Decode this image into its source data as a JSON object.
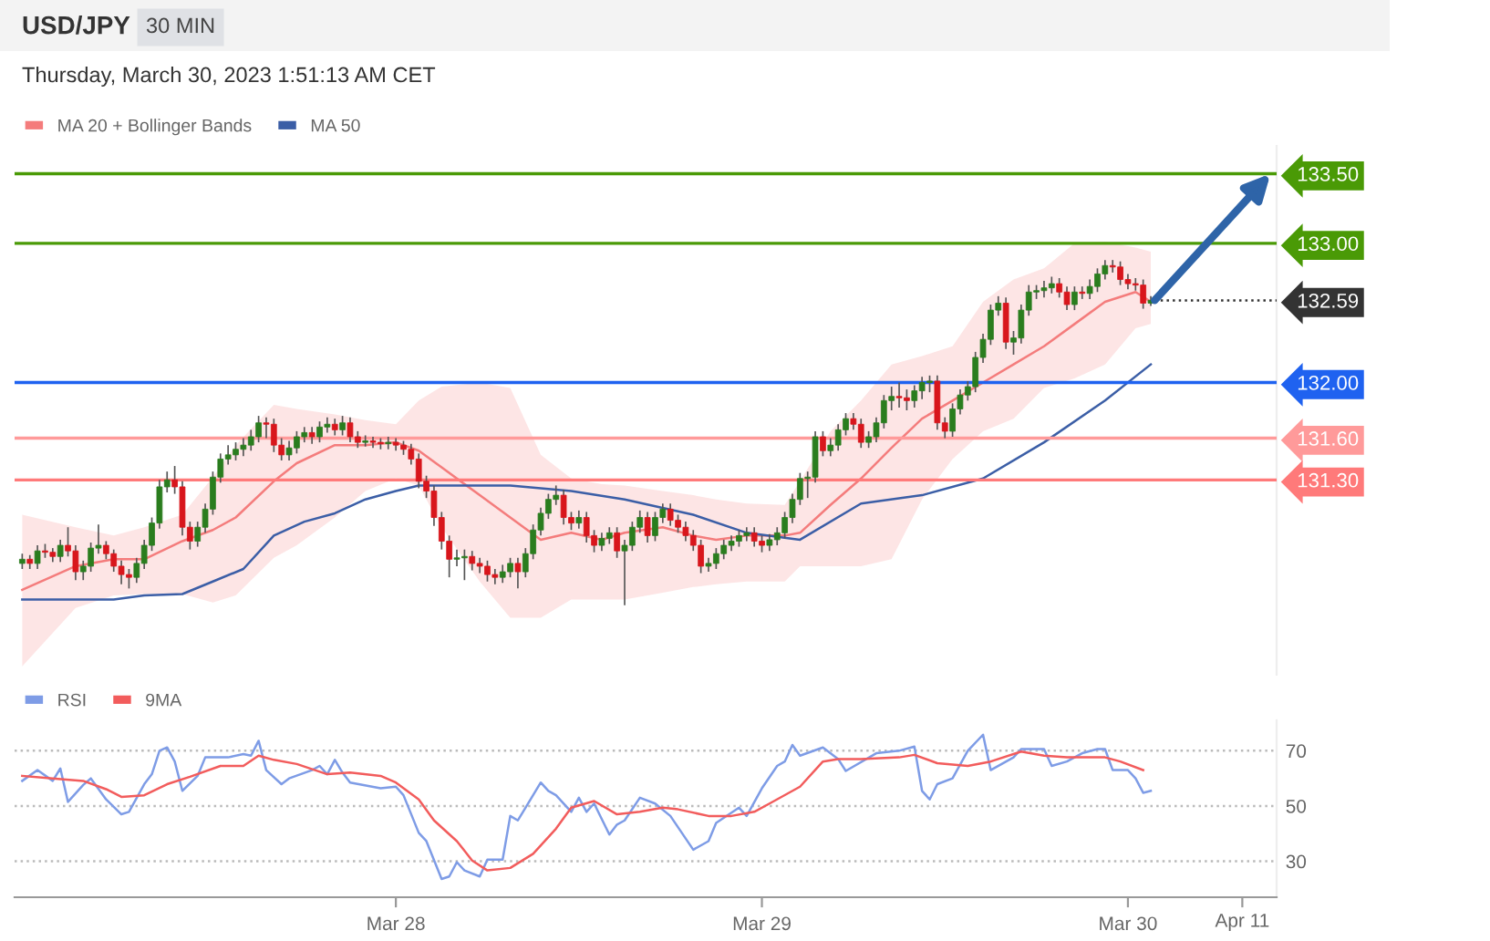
{
  "chart_data": [
    {
      "type": "candlestick",
      "title": "USD/JPY",
      "subtitle": "30 MIN",
      "annotations": [
        "Thursday, March 30, 2023 1:51:13 AM CET"
      ],
      "colors": [
        "#2a7d1e",
        "#d8161c",
        "#2a7d1e",
        "#d8161c",
        "#d8161c",
        "#2a7d1e",
        "#d8161c",
        "#d8161c",
        "#2a7d1e",
        "#2a7d1e",
        "#2a7d1e",
        "#d8161c",
        "#d8161c",
        "#d8161c",
        "#d8161c",
        "#2a7d1e",
        "#2a7d1e",
        "#2a7d1e",
        "#2a7d1e",
        "#2a7d1e",
        "#d8161c",
        "#d8161c",
        "#d8161c",
        "#2a7d1e",
        "#2a7d1e",
        "#2a7d1e",
        "#2a7d1e",
        "#2a7d1e",
        "#2a7d1e",
        "#2a7d1e",
        "#2a7d1e",
        "#2a7d1e",
        "#d8161c",
        "#d8161c",
        "#d8161c",
        "#2a7d1e",
        "#2a7d1e",
        "#2a7d1e",
        "#d8161c",
        "#2a7d1e",
        "#2a7d1e",
        "#d8161c",
        "#2a7d1e",
        "#d8161c",
        "#d8161c",
        "#2a7d1e",
        "#d8161c",
        "#d8161c",
        "#2a7d1e",
        "#d8161c",
        "#d8161c",
        "#d8161c",
        "#d8161c",
        "#d8161c",
        "#d8161c",
        "#d8161c",
        "#d8161c",
        "#2a7d1e",
        "#2a7d1e",
        "#d8161c",
        "#d8161c",
        "#d8161c",
        "#d8161c",
        "#2a7d1e",
        "#2a7d1e",
        "#d8161c",
        "#2a7d1e",
        "#2a7d1e",
        "#2a7d1e",
        "#2a7d1e",
        "#2a7d1e",
        "#d8161c",
        "#d8161c",
        "#2a7d1e",
        "#d8161c",
        "#d8161c",
        "#2a7d1e",
        "#2a7d1e",
        "#d8161c",
        "#2a7d1e",
        "#2a7d1e",
        "#2a7d1e",
        "#d8161c",
        "#2a7d1e",
        "#2a7d1e",
        "#d8161c",
        "#d8161c",
        "#d8161c",
        "#d8161c",
        "#d8161c",
        "#2a7d1e",
        "#2a7d1e",
        "#2a7d1e",
        "#2a7d1e",
        "#2a7d1e",
        "#2a7d1e",
        "#d8161c",
        "#d8161c",
        "#2a7d1e",
        "#2a7d1e",
        "#2a7d1e",
        "#2a7d1e",
        "#2a7d1e",
        "#2a7d1e",
        "#2a7d1e",
        "#d8161c",
        "#2a7d1e",
        "#2a7d1e",
        "#2a7d1e",
        "#d8161c",
        "#d8161c",
        "#2a7d1e",
        "#2a7d1e",
        "#2a7d1e",
        "#2a7d1e",
        "#d8161c",
        "#d8161c",
        "#2a7d1e",
        "#2a7d1e",
        "#2a7d1e",
        "#d8161c",
        "#d8161c",
        "#2a7d1e",
        "#2a7d1e",
        "#2a7d1e",
        "#2a7d1e",
        "#2a7d1e",
        "#2a7d1e",
        "#2a7d1e",
        "#d8161c",
        "#2a7d1e",
        "#2a7d1e",
        "#2a7d1e",
        "#2a7d1e",
        "#2a7d1e",
        "#2a7d1e",
        "#d8161c",
        "#d8161c",
        "#2a7d1e",
        "#d8161c",
        "#2a7d1e",
        "#2a7d1e",
        "#2a7d1e",
        "#d8161c",
        "#d8161c",
        "#d8161c",
        "#d8161c",
        "#d8161c",
        "#2a7d1e"
      ],
      "x": [
        "2023-03-26T23:30",
        "2023-03-27T00:00",
        "2023-03-27T00:30",
        "2023-03-27T01:00",
        "2023-03-27T01:30",
        "2023-03-27T02:00",
        "2023-03-27T02:30",
        "2023-03-27T03:00",
        "2023-03-27T03:30",
        "2023-03-27T04:00",
        "2023-03-27T04:30",
        "2023-03-27T05:00",
        "2023-03-27T05:30",
        "2023-03-27T06:00",
        "2023-03-27T06:30",
        "2023-03-27T07:00",
        "2023-03-27T07:30",
        "2023-03-27T08:00",
        "2023-03-27T08:30",
        "2023-03-27T09:00",
        "2023-03-27T09:30",
        "2023-03-27T10:00",
        "2023-03-27T10:30",
        "2023-03-27T11:00",
        "2023-03-27T11:30",
        "2023-03-27T12:00",
        "2023-03-27T12:30",
        "2023-03-27T13:00",
        "2023-03-27T13:30",
        "2023-03-27T14:00",
        "2023-03-27T14:30",
        "2023-03-27T15:00",
        "2023-03-27T15:30",
        "2023-03-27T16:00",
        "2023-03-27T16:30",
        "2023-03-27T17:00",
        "2023-03-27T17:30",
        "2023-03-27T18:00",
        "2023-03-27T18:30",
        "2023-03-27T19:00",
        "2023-03-27T19:30",
        "2023-03-27T20:00",
        "2023-03-27T20:30",
        "2023-03-27T21:00",
        "2023-03-27T21:30",
        "2023-03-27T22:00",
        "2023-03-27T22:30",
        "2023-03-27T23:00",
        "2023-03-27T23:30",
        "2023-03-28T00:00",
        "2023-03-28T00:30",
        "2023-03-28T01:00",
        "2023-03-28T01:30",
        "2023-03-28T02:00",
        "2023-03-28T02:30",
        "2023-03-28T03:00",
        "2023-03-28T03:30",
        "2023-03-28T04:00",
        "2023-03-28T04:30",
        "2023-03-28T05:00",
        "2023-03-28T05:30",
        "2023-03-28T06:00",
        "2023-03-28T06:30",
        "2023-03-28T07:00",
        "2023-03-28T07:30",
        "2023-03-28T08:00",
        "2023-03-28T08:30",
        "2023-03-28T09:00",
        "2023-03-28T09:30",
        "2023-03-28T10:00",
        "2023-03-28T10:30",
        "2023-03-28T11:00",
        "2023-03-28T11:30",
        "2023-03-28T12:00",
        "2023-03-28T12:30",
        "2023-03-28T13:00",
        "2023-03-28T13:30",
        "2023-03-28T14:00",
        "2023-03-28T14:30",
        "2023-03-28T15:00",
        "2023-03-28T15:30",
        "2023-03-28T16:00",
        "2023-03-28T16:30",
        "2023-03-28T17:00",
        "2023-03-28T17:30",
        "2023-03-28T18:00",
        "2023-03-28T18:30",
        "2023-03-28T19:00",
        "2023-03-28T19:30",
        "2023-03-28T20:00",
        "2023-03-28T20:30",
        "2023-03-28T21:00",
        "2023-03-28T21:30",
        "2023-03-28T22:00",
        "2023-03-28T22:30",
        "2023-03-28T23:00",
        "2023-03-28T23:30",
        "2023-03-29T00:00",
        "2023-03-29T00:30",
        "2023-03-29T01:00",
        "2023-03-29T01:30",
        "2023-03-29T02:00",
        "2023-03-29T02:30",
        "2023-03-29T03:00",
        "2023-03-29T03:30",
        "2023-03-29T04:00",
        "2023-03-29T04:30",
        "2023-03-29T05:00",
        "2023-03-29T05:30",
        "2023-03-29T06:00",
        "2023-03-29T06:30",
        "2023-03-29T07:00",
        "2023-03-29T07:30",
        "2023-03-29T08:00",
        "2023-03-29T08:30",
        "2023-03-29T09:00",
        "2023-03-29T09:30",
        "2023-03-29T10:00",
        "2023-03-29T10:30",
        "2023-03-29T11:00",
        "2023-03-29T11:30",
        "2023-03-29T12:00",
        "2023-03-29T12:30",
        "2023-03-29T13:00",
        "2023-03-29T13:30",
        "2023-03-29T14:00",
        "2023-03-29T14:30",
        "2023-03-29T15:00",
        "2023-03-29T15:30",
        "2023-03-29T16:00",
        "2023-03-29T16:30",
        "2023-03-29T17:00",
        "2023-03-29T17:30",
        "2023-03-29T18:00",
        "2023-03-29T18:30",
        "2023-03-29T19:00",
        "2023-03-29T19:30",
        "2023-03-29T20:00",
        "2023-03-29T20:30",
        "2023-03-29T21:00",
        "2023-03-29T21:30",
        "2023-03-29T22:00",
        "2023-03-29T22:30",
        "2023-03-29T23:00",
        "2023-03-29T23:30",
        "2023-03-30T00:00",
        "2023-03-30T00:30",
        "2023-03-30T01:00",
        "2023-03-30T01:30"
      ],
      "ohlc": [
        [
          130.7,
          130.77,
          130.66,
          130.73
        ],
        [
          130.73,
          130.76,
          130.66,
          130.7
        ],
        [
          130.7,
          130.83,
          130.66,
          130.79
        ],
        [
          130.79,
          130.84,
          130.74,
          130.78
        ],
        [
          130.78,
          130.81,
          130.71,
          130.75
        ],
        [
          130.75,
          130.87,
          130.71,
          130.83
        ],
        [
          130.83,
          130.96,
          130.75,
          130.79
        ],
        [
          130.79,
          130.83,
          130.58,
          130.64
        ],
        [
          130.64,
          130.72,
          130.58,
          130.68
        ],
        [
          130.68,
          130.85,
          130.64,
          130.81
        ],
        [
          130.81,
          130.98,
          130.77,
          130.83
        ],
        [
          130.83,
          130.86,
          130.73,
          130.77
        ],
        [
          130.77,
          130.8,
          130.64,
          130.68
        ],
        [
          130.68,
          130.72,
          130.55,
          130.62
        ],
        [
          130.62,
          130.66,
          130.52,
          130.6
        ],
        [
          130.6,
          130.74,
          130.56,
          130.7
        ],
        [
          130.7,
          130.87,
          130.66,
          130.83
        ],
        [
          130.83,
          131.03,
          130.79,
          130.99
        ],
        [
          130.99,
          131.3,
          130.95,
          131.25
        ],
        [
          131.25,
          131.36,
          131.21,
          131.3
        ],
        [
          131.3,
          131.4,
          131.2,
          131.25
        ],
        [
          131.25,
          131.29,
          130.9,
          130.96
        ],
        [
          130.96,
          131.0,
          130.8,
          130.86
        ],
        [
          130.86,
          131.0,
          130.82,
          130.96
        ],
        [
          130.96,
          131.13,
          130.92,
          131.09
        ],
        [
          131.09,
          131.36,
          131.05,
          131.32
        ],
        [
          131.32,
          131.49,
          131.28,
          131.45
        ],
        [
          131.45,
          131.55,
          131.41,
          131.48
        ],
        [
          131.48,
          131.57,
          131.44,
          131.52
        ],
        [
          131.52,
          131.6,
          131.47,
          131.55
        ],
        [
          131.55,
          131.66,
          131.51,
          131.61
        ],
        [
          131.61,
          131.76,
          131.57,
          131.71
        ],
        [
          131.71,
          131.75,
          131.6,
          131.7
        ],
        [
          131.7,
          131.74,
          131.5,
          131.55
        ],
        [
          131.55,
          131.6,
          131.44,
          131.48
        ],
        [
          131.48,
          131.58,
          131.44,
          131.53
        ],
        [
          131.53,
          131.65,
          131.49,
          131.61
        ],
        [
          131.61,
          131.68,
          131.57,
          131.64
        ],
        [
          131.64,
          131.68,
          131.56,
          131.61
        ],
        [
          131.61,
          131.72,
          131.57,
          131.68
        ],
        [
          131.68,
          131.75,
          131.64,
          131.7
        ],
        [
          131.7,
          131.74,
          131.62,
          131.66
        ],
        [
          131.66,
          131.76,
          131.62,
          131.71
        ],
        [
          131.71,
          131.75,
          131.57,
          131.61
        ],
        [
          131.61,
          131.65,
          131.53,
          131.57
        ],
        [
          131.57,
          131.62,
          131.54,
          131.58
        ],
        [
          131.58,
          131.61,
          131.53,
          131.57
        ],
        [
          131.57,
          131.6,
          131.52,
          131.56
        ],
        [
          131.56,
          131.61,
          131.52,
          131.57
        ],
        [
          131.57,
          131.6,
          131.51,
          131.55
        ],
        [
          131.55,
          131.58,
          131.48,
          131.52
        ],
        [
          131.52,
          131.56,
          131.41,
          131.45
        ],
        [
          131.45,
          131.49,
          131.24,
          131.29
        ],
        [
          131.29,
          131.33,
          131.17,
          131.22
        ],
        [
          131.22,
          131.26,
          130.97,
          131.03
        ],
        [
          131.03,
          131.07,
          130.8,
          130.86
        ],
        [
          130.86,
          130.9,
          130.6,
          130.73
        ],
        [
          130.73,
          130.8,
          130.68,
          130.74
        ],
        [
          130.74,
          130.8,
          130.58,
          130.75
        ],
        [
          130.75,
          130.79,
          130.65,
          130.7
        ],
        [
          130.7,
          130.74,
          130.63,
          130.68
        ],
        [
          130.68,
          130.72,
          130.57,
          130.62
        ],
        [
          130.62,
          130.66,
          130.55,
          130.6
        ],
        [
          130.6,
          130.69,
          130.56,
          130.64
        ],
        [
          130.64,
          130.74,
          130.6,
          130.7
        ],
        [
          130.7,
          130.74,
          130.52,
          130.64
        ],
        [
          130.64,
          130.81,
          130.6,
          130.77
        ],
        [
          130.77,
          130.98,
          130.73,
          130.94
        ],
        [
          130.94,
          131.1,
          130.9,
          131.06
        ],
        [
          131.06,
          131.2,
          131.02,
          131.16
        ],
        [
          131.16,
          131.26,
          131.12,
          131.19
        ],
        [
          131.19,
          131.23,
          130.98,
          131.03
        ],
        [
          131.03,
          131.07,
          130.94,
          130.99
        ],
        [
          130.99,
          131.08,
          130.95,
          131.03
        ],
        [
          131.03,
          131.07,
          130.85,
          130.9
        ],
        [
          130.9,
          130.94,
          130.78,
          130.83
        ],
        [
          130.83,
          130.92,
          130.79,
          130.88
        ],
        [
          130.88,
          130.96,
          130.84,
          130.92
        ],
        [
          130.92,
          130.96,
          130.74,
          130.79
        ],
        [
          130.79,
          130.87,
          130.4,
          130.83
        ],
        [
          130.83,
          131.0,
          130.79,
          130.96
        ],
        [
          130.96,
          131.08,
          130.92,
          131.03
        ],
        [
          131.03,
          131.07,
          130.85,
          130.9
        ],
        [
          130.9,
          131.07,
          130.86,
          131.03
        ],
        [
          131.03,
          131.13,
          130.99,
          131.09
        ],
        [
          131.09,
          131.13,
          130.97,
          131.01
        ],
        [
          131.01,
          131.05,
          130.92,
          130.96
        ],
        [
          130.96,
          131.0,
          130.86,
          130.9
        ],
        [
          130.9,
          130.94,
          130.79,
          130.83
        ],
        [
          130.83,
          130.87,
          130.63,
          130.68
        ],
        [
          130.68,
          130.74,
          130.64,
          130.7
        ],
        [
          130.7,
          130.81,
          130.66,
          130.77
        ],
        [
          130.77,
          130.87,
          130.73,
          130.83
        ],
        [
          130.83,
          130.9,
          130.79,
          130.86
        ],
        [
          130.86,
          130.94,
          130.82,
          130.9
        ],
        [
          130.9,
          130.96,
          130.86,
          130.92
        ],
        [
          130.92,
          130.96,
          130.82,
          130.86
        ],
        [
          130.86,
          130.9,
          130.78,
          130.83
        ],
        [
          130.83,
          130.91,
          130.79,
          130.87
        ],
        [
          130.87,
          130.96,
          130.83,
          130.92
        ],
        [
          130.92,
          131.07,
          130.88,
          131.03
        ],
        [
          131.03,
          131.2,
          130.99,
          131.16
        ],
        [
          131.16,
          131.35,
          131.12,
          131.31
        ],
        [
          131.31,
          131.36,
          131.17,
          131.32
        ],
        [
          131.32,
          131.65,
          131.28,
          131.61
        ],
        [
          131.61,
          131.65,
          131.47,
          131.51
        ],
        [
          131.51,
          131.6,
          131.47,
          131.55
        ],
        [
          131.55,
          131.7,
          131.51,
          131.66
        ],
        [
          131.66,
          131.78,
          131.62,
          131.74
        ],
        [
          131.74,
          131.78,
          131.66,
          131.7
        ],
        [
          131.7,
          131.74,
          131.53,
          131.57
        ],
        [
          131.57,
          131.65,
          131.53,
          131.61
        ],
        [
          131.61,
          131.75,
          131.57,
          131.71
        ],
        [
          131.71,
          131.91,
          131.67,
          131.87
        ],
        [
          131.87,
          131.97,
          131.8,
          131.9
        ],
        [
          131.9,
          132.0,
          131.82,
          131.89
        ],
        [
          131.89,
          131.95,
          131.8,
          131.87
        ],
        [
          131.87,
          131.98,
          131.82,
          131.94
        ],
        [
          131.94,
          132.04,
          131.88,
          132.0
        ],
        [
          132.0,
          132.05,
          131.93,
          132.01
        ],
        [
          132.01,
          132.05,
          131.66,
          131.71
        ],
        [
          131.71,
          131.75,
          131.6,
          131.65
        ],
        [
          131.65,
          131.85,
          131.61,
          131.81
        ],
        [
          131.81,
          131.95,
          131.77,
          131.91
        ],
        [
          131.91,
          132.01,
          131.87,
          131.97
        ],
        [
          131.97,
          132.22,
          131.93,
          132.18
        ],
        [
          132.18,
          132.35,
          132.14,
          132.31
        ],
        [
          132.31,
          132.56,
          132.27,
          132.52
        ],
        [
          132.52,
          132.62,
          132.48,
          132.57
        ],
        [
          132.57,
          132.61,
          132.24,
          132.29
        ],
        [
          132.29,
          132.37,
          132.2,
          132.32
        ],
        [
          132.32,
          132.56,
          132.28,
          132.52
        ],
        [
          132.52,
          132.7,
          132.48,
          132.65
        ],
        [
          132.65,
          132.7,
          132.6,
          132.66
        ],
        [
          132.66,
          132.73,
          132.61,
          132.68
        ],
        [
          132.68,
          132.76,
          132.64,
          132.71
        ],
        [
          132.71,
          132.75,
          132.61,
          132.65
        ],
        [
          132.65,
          132.69,
          132.52,
          132.56
        ],
        [
          132.56,
          132.69,
          132.52,
          132.65
        ],
        [
          132.65,
          132.69,
          132.6,
          132.64
        ],
        [
          132.64,
          132.74,
          132.6,
          132.69
        ],
        [
          132.69,
          132.82,
          132.65,
          132.78
        ],
        [
          132.78,
          132.88,
          132.74,
          132.84
        ],
        [
          132.84,
          132.88,
          132.79,
          132.83
        ],
        [
          132.83,
          132.87,
          132.7,
          132.74
        ],
        [
          132.74,
          132.78,
          132.67,
          132.71
        ],
        [
          132.71,
          132.75,
          132.66,
          132.7
        ],
        [
          132.7,
          132.74,
          132.53,
          132.57
        ],
        [
          132.57,
          132.62,
          132.55,
          132.59
        ]
      ],
      "series": [
        {
          "name": "MA 20 + Bollinger Bands",
          "type": "line",
          "color": "#f47c7c",
          "x": [
            "2023-03-26T23:30",
            "2023-03-27T03:00",
            "2023-03-27T05:30",
            "2023-03-27T07:30",
            "2023-03-27T10:00",
            "2023-03-27T12:00",
            "2023-03-27T13:30",
            "2023-03-27T16:00",
            "2023-03-27T17:30",
            "2023-03-27T20:00",
            "2023-03-27T22:00",
            "2023-03-28T00:00",
            "2023-03-28T01:30",
            "2023-03-28T03:00",
            "2023-03-28T05:30",
            "2023-03-28T07:30",
            "2023-03-28T09:30",
            "2023-03-28T11:30",
            "2023-03-28T13:30",
            "2023-03-28T15:00",
            "2023-03-28T17:30",
            "2023-03-28T19:30",
            "2023-03-28T21:00",
            "2023-03-28T23:00",
            "2023-03-29T01:30",
            "2023-03-29T02:30",
            "2023-03-29T04:30",
            "2023-03-29T06:30",
            "2023-03-29T08:30",
            "2023-03-29T10:30",
            "2023-03-29T12:30",
            "2023-03-29T14:30",
            "2023-03-29T16:30",
            "2023-03-29T18:30",
            "2023-03-29T20:30",
            "2023-03-29T22:30",
            "2023-03-30T00:30",
            "2023-03-30T01:30"
          ],
          "values": [
            130.51,
            130.68,
            130.73,
            130.73,
            130.86,
            130.94,
            131.03,
            131.29,
            131.42,
            131.55,
            131.55,
            131.57,
            131.51,
            131.39,
            131.19,
            131.03,
            130.87,
            130.92,
            130.87,
            130.92,
            130.96,
            130.9,
            130.87,
            130.9,
            130.9,
            130.92,
            131.12,
            131.31,
            131.53,
            131.74,
            131.87,
            132.0,
            132.13,
            132.26,
            132.42,
            132.58,
            132.65,
            132.58
          ],
          "upper": [
            131.05,
            130.96,
            130.9,
            130.96,
            131.05,
            131.32,
            131.55,
            131.84,
            131.81,
            131.77,
            131.73,
            131.7,
            131.87,
            131.97,
            132.0,
            131.96,
            131.48,
            131.31,
            131.27,
            131.26,
            131.22,
            131.19,
            131.16,
            131.13,
            131.12,
            131.29,
            131.65,
            131.87,
            132.13,
            132.19,
            132.26,
            132.58,
            132.74,
            132.82,
            133.0,
            133.01,
            132.97,
            132.94
          ],
          "lower": [
            129.96,
            130.38,
            130.47,
            130.48,
            130.48,
            130.42,
            130.47,
            130.74,
            130.83,
            131.03,
            131.22,
            131.31,
            131.26,
            130.96,
            130.57,
            130.31,
            130.31,
            130.44,
            130.44,
            130.44,
            130.49,
            130.53,
            130.55,
            130.57,
            130.57,
            130.68,
            130.68,
            130.68,
            130.73,
            131.16,
            131.45,
            131.65,
            131.74,
            131.96,
            132.03,
            132.13,
            132.39,
            132.42
          ]
        },
        {
          "name": "MA 50",
          "type": "line",
          "color": "#3b5ea6",
          "x": [
            "2023-03-26T23:30",
            "2023-03-27T05:30",
            "2023-03-27T07:30",
            "2023-03-27T10:00",
            "2023-03-27T12:00",
            "2023-03-27T14:00",
            "2023-03-27T16:00",
            "2023-03-27T18:00",
            "2023-03-27T20:00",
            "2023-03-27T22:00",
            "2023-03-28T00:00",
            "2023-03-28T01:30",
            "2023-03-28T05:30",
            "2023-03-28T07:30",
            "2023-03-28T11:30",
            "2023-03-28T15:00",
            "2023-03-28T19:30",
            "2023-03-28T23:00",
            "2023-03-29T02:30",
            "2023-03-29T06:30",
            "2023-03-29T10:30",
            "2023-03-29T14:30",
            "2023-03-29T18:30",
            "2023-03-29T22:30",
            "2023-03-30T01:30"
          ],
          "values": [
            130.44,
            130.44,
            130.47,
            130.48,
            130.57,
            130.66,
            130.9,
            131.0,
            131.06,
            131.16,
            131.22,
            131.26,
            131.26,
            131.26,
            131.22,
            131.16,
            131.05,
            130.92,
            130.87,
            131.13,
            131.19,
            131.31,
            131.57,
            131.87,
            132.13
          ]
        }
      ],
      "xlim": [
        "2023-03-26T23:00",
        "2023-03-30T09:45"
      ],
      "ylim": [
        129.9,
        133.7
      ],
      "tick_labels": "y",
      "legend": "top left",
      "yticks": [
        {
          "value": 131.3,
          "label": "131.30"
        },
        {
          "value": 131.6,
          "label": "131.60"
        },
        {
          "value": 132.0,
          "label": "132.00"
        },
        {
          "value": 132.59,
          "label": "132.59"
        },
        {
          "value": 133.0,
          "label": "133.00"
        },
        {
          "value": 133.5,
          "label": "133.50"
        }
      ],
      "ref_lines": [
        {
          "axis": "y",
          "value": 133.5,
          "color": "#4a9a06",
          "line_style": "solid"
        },
        {
          "axis": "y",
          "value": 133.0,
          "color": "#4a9a06",
          "line_style": "solid"
        },
        {
          "axis": "y",
          "value": 132.59,
          "color": "#333333",
          "line_style": "dotted"
        },
        {
          "axis": "y",
          "value": 132.0,
          "color": "#1f62f0",
          "line_style": "solid"
        },
        {
          "axis": "y",
          "value": 131.6,
          "color": "#ff9a9a",
          "line_style": "solid"
        },
        {
          "axis": "y",
          "value": 131.3,
          "color": "#ff7a7a",
          "line_style": "solid"
        }
      ]
    },
    {
      "type": "line",
      "legend": "top left",
      "grid": "y",
      "annotations": [
        "Apr 11"
      ],
      "series": [
        {
          "name": "RSI",
          "color": "#7e9ce6",
          "x": [
            "2023-03-26T23:30",
            "2023-03-27T00:30",
            "2023-03-27T01:30",
            "2023-03-27T02:00",
            "2023-03-27T02:30",
            "2023-03-27T03:30",
            "2023-03-27T04:00",
            "2023-03-27T05:00",
            "2023-03-27T06:00",
            "2023-03-27T06:30",
            "2023-03-27T07:30",
            "2023-03-27T08:00",
            "2023-03-27T08:30",
            "2023-03-27T09:00",
            "2023-03-27T09:30",
            "2023-03-27T10:00",
            "2023-03-27T11:00",
            "2023-03-27T11:30",
            "2023-03-27T13:00",
            "2023-03-27T14:00",
            "2023-03-27T14:30",
            "2023-03-27T15:00",
            "2023-03-27T15:30",
            "2023-03-27T16:30",
            "2023-03-27T17:00",
            "2023-03-27T18:30",
            "2023-03-27T19:00",
            "2023-03-27T19:30",
            "2023-03-27T20:00",
            "2023-03-27T20:30",
            "2023-03-27T21:00",
            "2023-03-27T23:00",
            "2023-03-28T00:00",
            "2023-03-28T00:30",
            "2023-03-28T01:30",
            "2023-03-28T02:00",
            "2023-03-28T03:00",
            "2023-03-28T03:30",
            "2023-03-28T04:00",
            "2023-03-28T04:30",
            "2023-03-28T05:30",
            "2023-03-28T06:00",
            "2023-03-28T07:00",
            "2023-03-28T07:30",
            "2023-03-28T08:00",
            "2023-03-28T08:30",
            "2023-03-28T09:30",
            "2023-03-28T10:00",
            "2023-03-28T10:30",
            "2023-03-28T11:30",
            "2023-03-28T12:00",
            "2023-03-28T12:30",
            "2023-03-28T13:00",
            "2023-03-28T14:00",
            "2023-03-28T14:30",
            "2023-03-28T15:00",
            "2023-03-28T16:00",
            "2023-03-28T17:00",
            "2023-03-28T18:00",
            "2023-03-28T19:30",
            "2023-03-28T20:30",
            "2023-03-28T21:00",
            "2023-03-28T22:30",
            "2023-03-28T23:00",
            "2023-03-29T00:00",
            "2023-03-29T01:00",
            "2023-03-29T01:30",
            "2023-03-29T02:00",
            "2023-03-29T02:30",
            "2023-03-29T04:00",
            "2023-03-29T05:00",
            "2023-03-29T05:30",
            "2023-03-29T07:30",
            "2023-03-29T09:00",
            "2023-03-29T10:00",
            "2023-03-29T10:30",
            "2023-03-29T11:00",
            "2023-03-29T11:30",
            "2023-03-29T12:30",
            "2023-03-29T13:30",
            "2023-03-29T14:30",
            "2023-03-29T15:00",
            "2023-03-29T16:30",
            "2023-03-29T17:00",
            "2023-03-29T18:30",
            "2023-03-29T19:00",
            "2023-03-29T20:00",
            "2023-03-29T21:00",
            "2023-03-29T22:00",
            "2023-03-29T22:30",
            "2023-03-29T23:00",
            "2023-03-30T00:00",
            "2023-03-30T00:30",
            "2023-03-30T01:00",
            "2023-03-30T01:30"
          ],
          "values": [
            59.1,
            63.0,
            59.1,
            63.6,
            51.5,
            57.6,
            60.0,
            52.4,
            47.0,
            47.9,
            57.9,
            61.5,
            70.0,
            71.2,
            66.1,
            55.5,
            60.9,
            67.6,
            67.6,
            68.8,
            68.2,
            73.6,
            63.0,
            57.9,
            60.0,
            63.0,
            64.5,
            61.5,
            66.7,
            62.1,
            58.5,
            56.4,
            57.0,
            53.9,
            40.3,
            37.3,
            23.6,
            24.5,
            29.7,
            26.7,
            24.5,
            30.6,
            30.6,
            46.4,
            44.8,
            49.4,
            58.5,
            55.5,
            53.9,
            47.9,
            53.0,
            47.9,
            50.9,
            39.7,
            43.3,
            44.8,
            53.0,
            50.9,
            46.4,
            34.2,
            37.3,
            43.9,
            49.4,
            46.4,
            56.4,
            64.5,
            66.1,
            72.1,
            68.2,
            71.2,
            67.0,
            62.7,
            69.1,
            70.0,
            71.5,
            55.5,
            52.4,
            57.9,
            60.0,
            70.0,
            75.8,
            63.0,
            67.6,
            70.6,
            70.6,
            64.5,
            66.1,
            69.1,
            70.6,
            70.6,
            63.0,
            63.0,
            60.0,
            54.8,
            55.5
          ]
        },
        {
          "name": "9MA",
          "color": "#f25c5c",
          "x": [
            "2023-03-26T23:30",
            "2023-03-27T01:30",
            "2023-03-27T03:30",
            "2023-03-27T05:00",
            "2023-03-27T06:00",
            "2023-03-27T07:30",
            "2023-03-27T09:00",
            "2023-03-27T10:30",
            "2023-03-27T12:30",
            "2023-03-27T14:00",
            "2023-03-27T15:00",
            "2023-03-27T16:00",
            "2023-03-27T17:30",
            "2023-03-27T19:30",
            "2023-03-27T21:00",
            "2023-03-27T23:00",
            "2023-03-28T00:00",
            "2023-03-28T01:30",
            "2023-03-28T02:30",
            "2023-03-28T04:00",
            "2023-03-28T05:00",
            "2023-03-28T06:00",
            "2023-03-28T07:30",
            "2023-03-28T09:00",
            "2023-03-28T10:30",
            "2023-03-28T11:30",
            "2023-03-28T13:00",
            "2023-03-28T14:30",
            "2023-03-28T16:00",
            "2023-03-28T17:30",
            "2023-03-28T18:30",
            "2023-03-28T20:30",
            "2023-03-28T22:00",
            "2023-03-28T23:30",
            "2023-03-29T00:30",
            "2023-03-29T02:30",
            "2023-03-29T04:00",
            "2023-03-29T05:00",
            "2023-03-29T06:30",
            "2023-03-29T09:00",
            "2023-03-29T10:00",
            "2023-03-29T11:30",
            "2023-03-29T13:30",
            "2023-03-29T15:00",
            "2023-03-29T17:00",
            "2023-03-29T18:30",
            "2023-03-29T20:00",
            "2023-03-29T21:30",
            "2023-03-29T22:30",
            "2023-03-29T23:30",
            "2023-03-30T01:00"
          ],
          "values": [
            60.9,
            60.0,
            59.1,
            56.1,
            53.3,
            53.9,
            57.9,
            60.6,
            64.5,
            64.5,
            68.2,
            66.7,
            65.2,
            61.5,
            62.1,
            60.9,
            58.5,
            52.4,
            44.8,
            37.3,
            30.3,
            26.7,
            27.6,
            32.7,
            41.8,
            49.4,
            51.8,
            47.0,
            47.9,
            49.4,
            48.8,
            46.4,
            46.4,
            47.9,
            50.9,
            57.0,
            66.1,
            67.0,
            67.0,
            67.6,
            68.5,
            65.5,
            64.5,
            66.1,
            69.7,
            68.2,
            67.6,
            67.6,
            67.6,
            66.1,
            63.0
          ]
        }
      ],
      "xlim": [
        "2023-03-26T23:00",
        "2023-03-30T09:45"
      ],
      "ylim": [
        17,
        81
      ],
      "yticks": [
        30,
        50,
        70
      ],
      "xticks": [
        {
          "value": "2023-03-28",
          "label": "Mar 28"
        },
        {
          "value": "2023-03-29",
          "label": "Mar 29"
        },
        {
          "value": "2023-03-30",
          "label": "Mar 30"
        },
        {
          "value": "2023-03-30T07:30",
          "label": null
        }
      ]
    }
  ]
}
